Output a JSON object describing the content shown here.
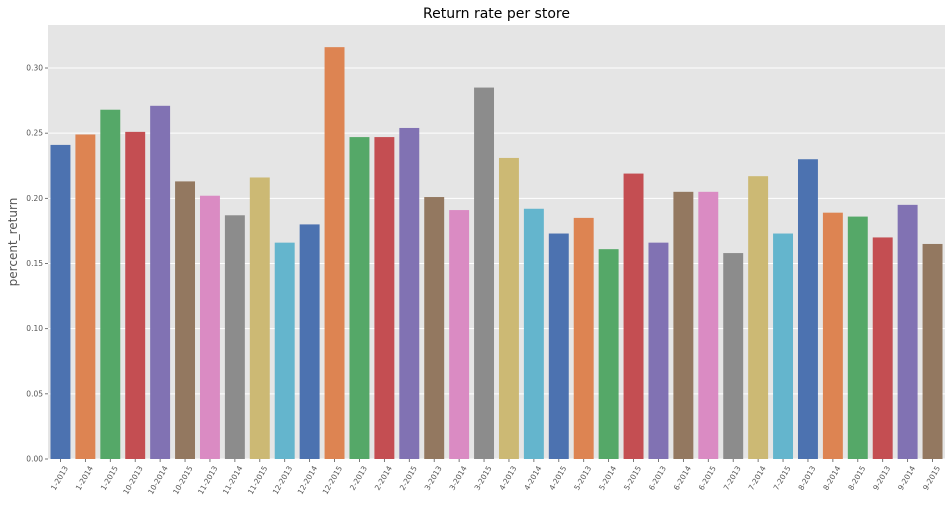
{
  "chart_data": {
    "type": "bar",
    "title": "Return rate per store",
    "xlabel": "",
    "ylabel": "percent_return",
    "ylim": [
      0,
      0.333
    ],
    "yticks": [
      "0.00",
      "0.05",
      "0.10",
      "0.15",
      "0.20",
      "0.25",
      "0.30"
    ],
    "grid": true,
    "categories": [
      "1-2013",
      "1-2014",
      "1-2015",
      "10-2013",
      "10-2014",
      "10-2015",
      "11-2013",
      "11-2014",
      "11-2015",
      "12-2013",
      "12-2014",
      "12-2015",
      "2-2013",
      "2-2014",
      "2-2015",
      "3-2013",
      "3-2014",
      "3-2015",
      "4-2013",
      "4-2014",
      "4-2015",
      "5-2013",
      "5-2014",
      "5-2015",
      "6-2013",
      "6-2014",
      "6-2015",
      "7-2013",
      "7-2014",
      "7-2015",
      "8-2013",
      "8-2014",
      "8-2015",
      "9-2013",
      "9-2014",
      "9-2015"
    ],
    "values": [
      0.241,
      0.249,
      0.268,
      0.251,
      0.271,
      0.213,
      0.202,
      0.187,
      0.216,
      0.166,
      0.18,
      0.316,
      0.247,
      0.247,
      0.254,
      0.201,
      0.191,
      0.285,
      0.231,
      0.192,
      0.173,
      0.185,
      0.161,
      0.219,
      0.166,
      0.205,
      0.205,
      0.158,
      0.217,
      0.173,
      0.23,
      0.189,
      0.186,
      0.17,
      0.195,
      0.165
    ],
    "colors": [
      "#4c72b0",
      "#dd8452",
      "#55a868",
      "#c44e52",
      "#8172b3",
      "#937860",
      "#da8bc3",
      "#8c8c8c",
      "#ccb974",
      "#64b5cd"
    ],
    "background": "#e5e5e5"
  }
}
